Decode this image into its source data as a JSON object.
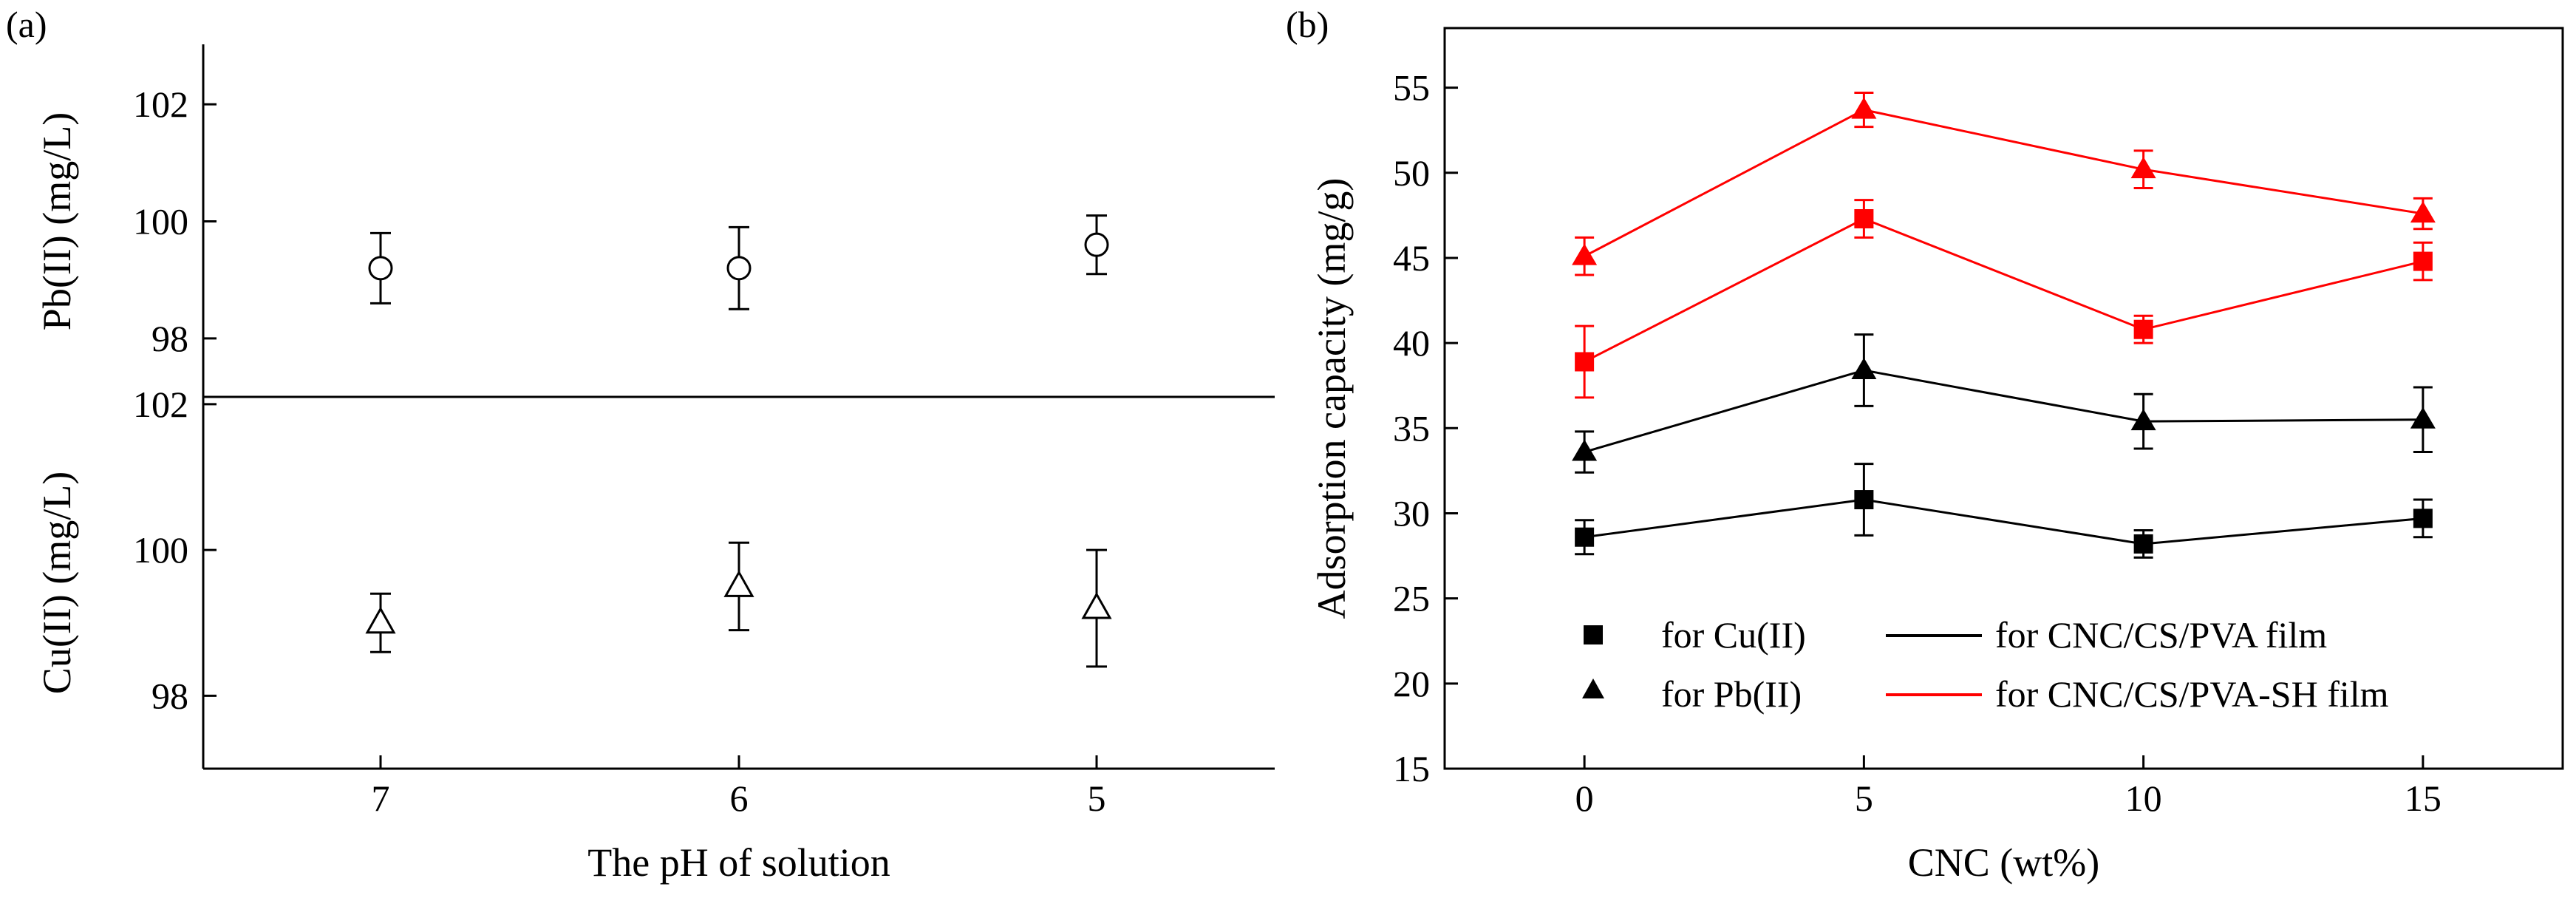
{
  "colors": {
    "black": "#000000",
    "red": "#ff0000",
    "background": "#ffffff"
  },
  "panel_a": {
    "label": "(a)",
    "xlabel": "The pH of solution"
  },
  "panel_b": {
    "label": "(b)",
    "legend": {
      "marker_entries": [
        "for Cu(II)",
        "for Pb(II)"
      ],
      "line_entries": [
        "for CNC/CS/PVA film",
        "for CNC/CS/PVA-SH film"
      ]
    }
  },
  "chart_data": [
    {
      "type": "scatter",
      "panel": "(a) upper",
      "xlabel": "The pH of solution",
      "ylabel": "Pb(II) (mg/L)",
      "categories": [
        "7",
        "6",
        "5"
      ],
      "ylim": [
        97.0,
        103.0
      ],
      "yticks": [
        98,
        100,
        102
      ],
      "series": [
        {
          "name": "Pb(II)",
          "marker": "open-circle",
          "values": [
            99.2,
            99.2,
            99.6
          ],
          "errors": [
            0.6,
            0.7,
            0.5
          ]
        }
      ]
    },
    {
      "type": "scatter",
      "panel": "(a) lower",
      "xlabel": "The pH of solution",
      "ylabel": "Cu(II) (mg/L)",
      "categories": [
        "7",
        "6",
        "5"
      ],
      "ylim": [
        97.0,
        102.1
      ],
      "yticks": [
        98,
        100,
        102
      ],
      "series": [
        {
          "name": "Cu(II)",
          "marker": "open-triangle",
          "values": [
            99.0,
            99.5,
            99.2
          ],
          "errors": [
            0.4,
            0.6,
            0.8
          ]
        }
      ]
    },
    {
      "type": "line",
      "panel": "(b)",
      "xlabel": "CNC (wt%)",
      "ylabel": "Adsorption capacity (mg/g)",
      "x": [
        0,
        5,
        10,
        15
      ],
      "xlim": [
        -2.5,
        17.5
      ],
      "ylim": [
        15,
        58.5
      ],
      "xticks": [
        0,
        5,
        10,
        15
      ],
      "yticks": [
        15,
        20,
        25,
        30,
        35,
        40,
        45,
        50,
        55
      ],
      "series": [
        {
          "name": "Cu(II) for CNC/CS/PVA film",
          "marker": "square",
          "color": "#000000",
          "values": [
            28.6,
            30.8,
            28.2,
            29.7
          ],
          "errors": [
            1.0,
            2.1,
            0.8,
            1.1
          ]
        },
        {
          "name": "Pb(II) for CNC/CS/PVA film",
          "marker": "triangle",
          "color": "#000000",
          "values": [
            33.6,
            38.4,
            35.4,
            35.5
          ],
          "errors": [
            1.2,
            2.1,
            1.6,
            1.9
          ]
        },
        {
          "name": "Cu(II) for CNC/CS/PVA-SH film",
          "marker": "square",
          "color": "#ff0000",
          "values": [
            38.9,
            47.3,
            40.8,
            44.8
          ],
          "errors": [
            2.1,
            1.1,
            0.8,
            1.1
          ]
        },
        {
          "name": "Pb(II) for CNC/CS/PVA-SH film",
          "marker": "triangle",
          "color": "#ff0000",
          "values": [
            45.1,
            53.7,
            50.2,
            47.6
          ],
          "errors": [
            1.1,
            1.0,
            1.1,
            0.9
          ]
        }
      ]
    }
  ]
}
